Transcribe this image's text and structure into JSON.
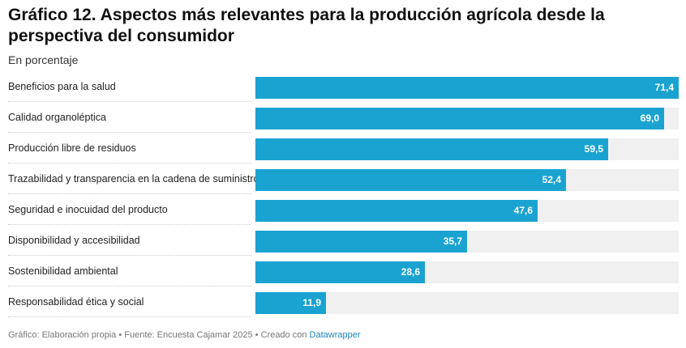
{
  "title": "Gráfico 12. Aspectos más relevantes para la producción agrícola desde la perspectiva del consumidor",
  "subtitle": "En porcentaje",
  "footer": {
    "text": "Gráfico: Elaboración propia • Fuente: Encuesta Cajamar 2025 • Creado con ",
    "link": "Datawrapper"
  },
  "colors": {
    "bar": "#1aa3d1",
    "track": "#f0f0f0"
  },
  "chart_data": {
    "type": "bar",
    "orientation": "horizontal",
    "categories": [
      "Beneficios para la salud",
      "Calidad organoléptica",
      "Producción libre de residuos",
      "Trazabilidad y transparencia en la cadena de suministro",
      "Seguridad e inocuidad del producto",
      "Disponibilidad y accesibilidad",
      "Sostenibilidad ambiental",
      "Responsabilidad ética y social"
    ],
    "values": [
      71.4,
      69.0,
      59.5,
      52.4,
      47.6,
      35.7,
      28.6,
      11.9
    ],
    "value_labels": [
      "71,4",
      "69,0",
      "59,5",
      "52,4",
      "47,6",
      "35,7",
      "28,6",
      "11,9"
    ],
    "xlim": [
      0,
      71.4
    ],
    "grid": false,
    "legend": "none"
  }
}
